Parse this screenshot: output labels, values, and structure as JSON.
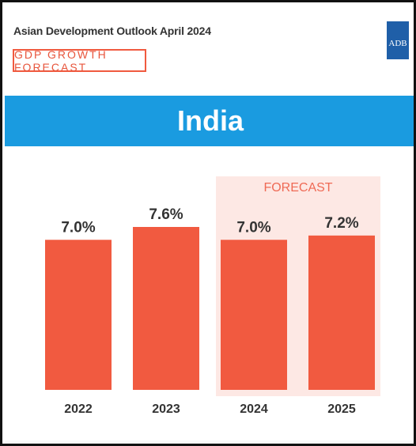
{
  "header": {
    "report_title": "Asian Development Outlook April 2024",
    "badge": "GDP GROWTH FORECAST",
    "logo_text": "ADB"
  },
  "country": "India",
  "forecast_label": "FORECAST",
  "colors": {
    "bar": "#f15a40",
    "band": "#1a9be0",
    "forecast_bg": "#fde8e4",
    "accent": "#e8553c"
  },
  "chart_data": {
    "type": "bar",
    "categories": [
      "2022",
      "2023",
      "2024",
      "2025"
    ],
    "values": [
      7.0,
      7.6,
      7.0,
      7.2
    ],
    "value_labels": [
      "7.0%",
      "7.6%",
      "7.0%",
      "7.2%"
    ],
    "forecast_categories": [
      "2024",
      "2025"
    ],
    "title": "India",
    "xlabel": "",
    "ylabel": "",
    "ylim": [
      0,
      7.6
    ],
    "grid": false,
    "legend": "none"
  }
}
